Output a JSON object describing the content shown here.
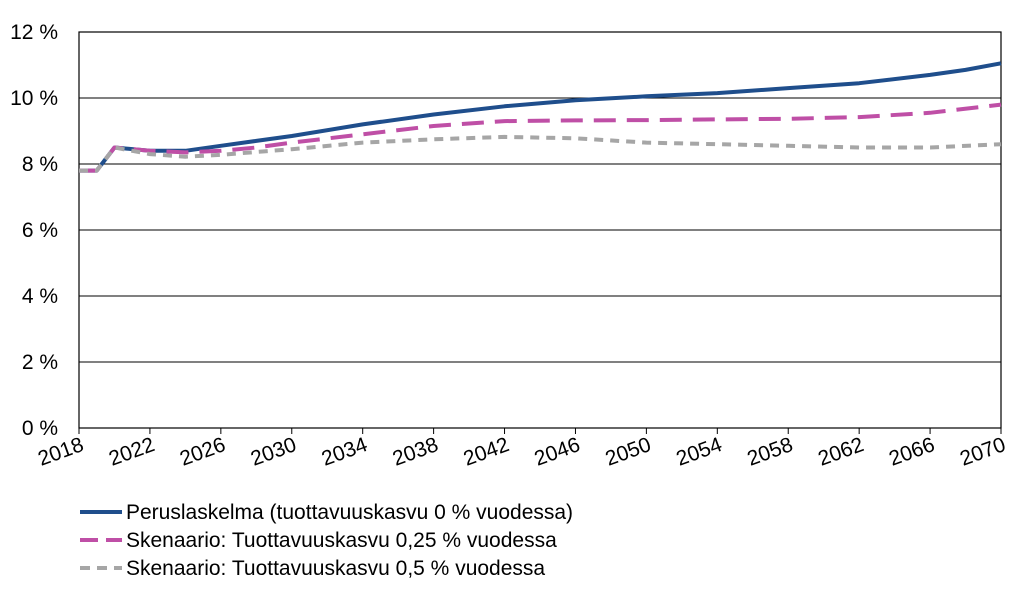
{
  "chart_data": {
    "type": "line",
    "title": "",
    "xlabel": "",
    "ylabel": "",
    "ylim": [
      0,
      12
    ],
    "xlim": [
      2018,
      2070
    ],
    "y_tick_values": [
      0,
      2,
      4,
      6,
      8,
      10,
      12
    ],
    "y_tick_labels": [
      "0 %",
      "2 %",
      "4 %",
      "6 %",
      "8 %",
      "10 %",
      "12 %"
    ],
    "x_tick_values": [
      2018,
      2022,
      2026,
      2030,
      2034,
      2038,
      2042,
      2046,
      2050,
      2054,
      2058,
      2062,
      2066,
      2070
    ],
    "x_tick_labels": [
      "2018",
      "2022",
      "2026",
      "2030",
      "2034",
      "2038",
      "2042",
      "2046",
      "2050",
      "2054",
      "2058",
      "2062",
      "2066",
      "2070"
    ],
    "grid": "horizontal",
    "legend_position": "bottom",
    "series": [
      {
        "name": "Peruslaskelma (tuottavuuskasvu 0 % vuodessa)",
        "color": "#1F4E8C",
        "dash": "solid",
        "points": [
          [
            2018,
            7.8
          ],
          [
            2019,
            7.8
          ],
          [
            2020,
            8.5
          ],
          [
            2022,
            8.4
          ],
          [
            2023,
            8.4
          ],
          [
            2024,
            8.4
          ],
          [
            2026,
            8.55
          ],
          [
            2028,
            8.7
          ],
          [
            2030,
            8.85
          ],
          [
            2034,
            9.2
          ],
          [
            2038,
            9.5
          ],
          [
            2042,
            9.75
          ],
          [
            2046,
            9.93
          ],
          [
            2050,
            10.05
          ],
          [
            2054,
            10.15
          ],
          [
            2058,
            10.3
          ],
          [
            2062,
            10.45
          ],
          [
            2066,
            10.7
          ],
          [
            2068,
            10.85
          ],
          [
            2070,
            11.05
          ]
        ]
      },
      {
        "name": "Skenaario: Tuottavuuskasvu 0,25 % vuodessa",
        "color": "#BF4FA6",
        "dash": "long-dash",
        "points": [
          [
            2018,
            7.8
          ],
          [
            2019,
            7.8
          ],
          [
            2020,
            8.5
          ],
          [
            2022,
            8.4
          ],
          [
            2024,
            8.35
          ],
          [
            2026,
            8.4
          ],
          [
            2028,
            8.5
          ],
          [
            2030,
            8.65
          ],
          [
            2034,
            8.9
          ],
          [
            2038,
            9.15
          ],
          [
            2042,
            9.3
          ],
          [
            2046,
            9.32
          ],
          [
            2050,
            9.33
          ],
          [
            2054,
            9.35
          ],
          [
            2058,
            9.37
          ],
          [
            2062,
            9.42
          ],
          [
            2066,
            9.55
          ],
          [
            2070,
            9.8
          ]
        ]
      },
      {
        "name": "Skenaario: Tuottavuuskasvu 0,5 % vuodessa",
        "color": "#A6A6A6",
        "dash": "short-dash",
        "points": [
          [
            2018,
            7.8
          ],
          [
            2019,
            7.8
          ],
          [
            2020,
            8.5
          ],
          [
            2022,
            8.3
          ],
          [
            2024,
            8.22
          ],
          [
            2026,
            8.28
          ],
          [
            2030,
            8.45
          ],
          [
            2034,
            8.65
          ],
          [
            2038,
            8.75
          ],
          [
            2042,
            8.82
          ],
          [
            2046,
            8.78
          ],
          [
            2050,
            8.65
          ],
          [
            2054,
            8.6
          ],
          [
            2058,
            8.55
          ],
          [
            2062,
            8.5
          ],
          [
            2066,
            8.5
          ],
          [
            2070,
            8.6
          ]
        ]
      }
    ]
  }
}
